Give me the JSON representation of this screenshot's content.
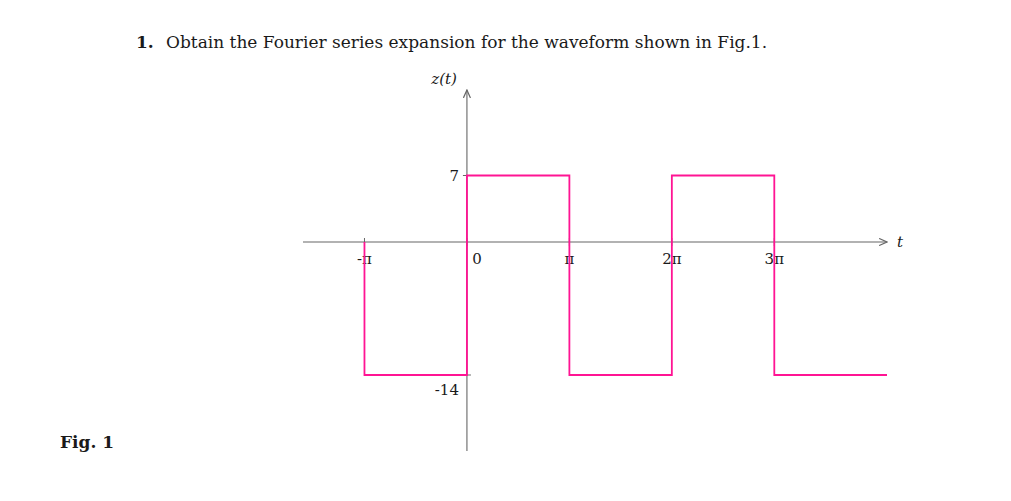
{
  "chart_data": {
    "type": "line",
    "title": "Obtain the Fourier series expansion for the waveform shown in Fig.1.",
    "annotations": [
      "1.",
      "Fig. 1"
    ],
    "x_label": "t",
    "y_label": "z(t)",
    "x": [
      -1,
      -1,
      0,
      0,
      1,
      1,
      2,
      2,
      3,
      3,
      4.1
    ],
    "values": [
      0,
      -14,
      -14,
      7,
      7,
      -14,
      -14,
      7,
      7,
      -14,
      -14
    ],
    "color": "#FF1493",
    "xlim": [
      -1.6,
      4.1
    ],
    "ylim": [
      -22,
      16
    ],
    "xticks": [
      {
        "value": -1,
        "label": "-π"
      },
      0,
      {
        "value": 1,
        "label": "π"
      },
      {
        "value": 2,
        "label": "2π"
      },
      {
        "value": 3,
        "label": "3π"
      }
    ],
    "yticks": [
      -14,
      7
    ],
    "grid": false
  }
}
